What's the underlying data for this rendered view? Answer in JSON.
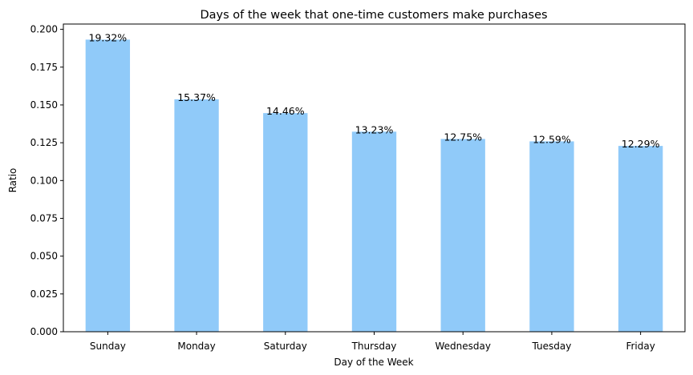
{
  "chart_data": {
    "type": "bar",
    "title": "Days of the week that one-time customers make purchases",
    "xlabel": "Day of the Week",
    "ylabel": "Ratio",
    "categories": [
      "Sunday",
      "Monday",
      "Saturday",
      "Thursday",
      "Wednesday",
      "Tuesday",
      "Friday"
    ],
    "values": [
      0.1932,
      0.1537,
      0.1446,
      0.1323,
      0.1275,
      0.1259,
      0.1229
    ],
    "data_labels": [
      "19.32%",
      "15.37%",
      "14.46%",
      "13.23%",
      "12.75%",
      "12.59%",
      "12.29%"
    ],
    "ylim": [
      0,
      0.2035
    ],
    "yticks": [
      0.0,
      0.025,
      0.05,
      0.075,
      0.1,
      0.125,
      0.15,
      0.175,
      0.2
    ],
    "ytick_labels": [
      "0.000",
      "0.025",
      "0.050",
      "0.075",
      "0.100",
      "0.125",
      "0.150",
      "0.175",
      "0.200"
    ],
    "bar_color": "#90caf9",
    "grid": false,
    "legend": "none"
  }
}
